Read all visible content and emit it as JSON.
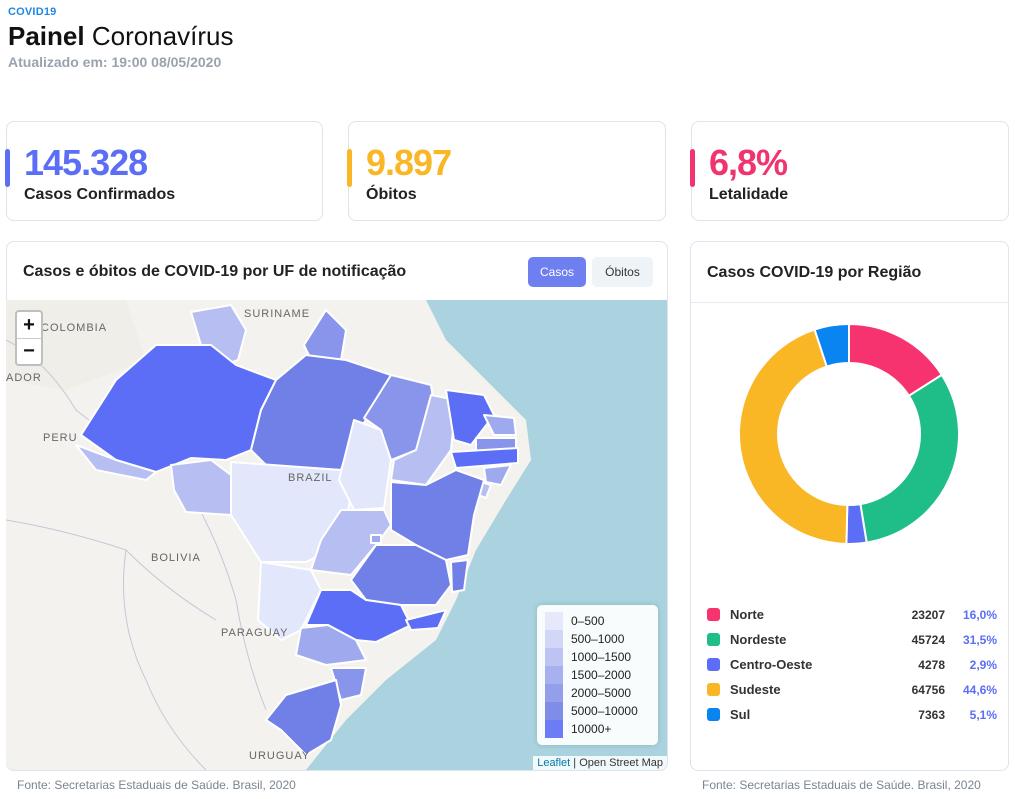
{
  "header": {
    "tag": "COVID19",
    "title_bold": "Painel",
    "title_rest": "Coronavírus",
    "updated_label": "Atualizado em:",
    "updated_value": "19:00 08/05/2020"
  },
  "kpis": [
    {
      "value": "145.328",
      "label": "Casos Confirmados",
      "color": "#5b6ef5"
    },
    {
      "value": "9.897",
      "label": "Óbitos",
      "color": "#f9b625"
    },
    {
      "value": "6,8%",
      "label": "Letalidade",
      "color": "#f0346e"
    }
  ],
  "map_panel": {
    "title": "Casos e óbitos de COVID-19 por UF de notificação",
    "toggle_cases": "Casos",
    "toggle_deaths": "Óbitos",
    "zoom_in": "+",
    "zoom_out": "−",
    "labels": {
      "colombia": "COLOMBIA",
      "suriname": "SURINAME",
      "ecuador": "ADOR",
      "peru": "PERU",
      "brazil": "BRAZIL",
      "bolivia": "BOLIVIA",
      "paraguay": "PARAGUAY",
      "uruguay": "URUGUAY"
    },
    "legend": [
      {
        "label": "0–500",
        "color": "#e3e7fb"
      },
      {
        "label": "500–1000",
        "color": "#cdd3f6"
      },
      {
        "label": "1000–1500",
        "color": "#b6bef2"
      },
      {
        "label": "1500–2000",
        "color": "#9fa9ee"
      },
      {
        "label": "2000–5000",
        "color": "#8895ea"
      },
      {
        "label": "5000–10000",
        "color": "#7180e6"
      },
      {
        "label": "10000+",
        "color": "#5b6ef5"
      }
    ],
    "attribution_leaflet": "Leaflet",
    "attribution_sep": " | ",
    "attribution_osm": "Open Street Map",
    "source": "Fonte: Secretarias Estaduais de Saúde. Brasil, 2020"
  },
  "region_panel": {
    "title": "Casos COVID-19 por Região",
    "source": "Fonte: Secretarias Estaduais de Saúde. Brasil, 2020"
  },
  "chart_data": {
    "type": "pie",
    "title": "Casos COVID-19 por Região",
    "donut": true,
    "categories": [
      "Norte",
      "Nordeste",
      "Centro-Oeste",
      "Sudeste",
      "Sul"
    ],
    "values": [
      23207,
      45724,
      4278,
      64756,
      7363
    ],
    "labels_values": [
      "23207",
      "45724",
      "4278",
      "64756",
      "7363"
    ],
    "percentages": [
      "16,0%",
      "31,5%",
      "2,9%",
      "44,6%",
      "5,1%"
    ],
    "colors": [
      "#f7336f",
      "#1fbe88",
      "#5b6ef5",
      "#f9b625",
      "#0a84f0"
    ]
  }
}
